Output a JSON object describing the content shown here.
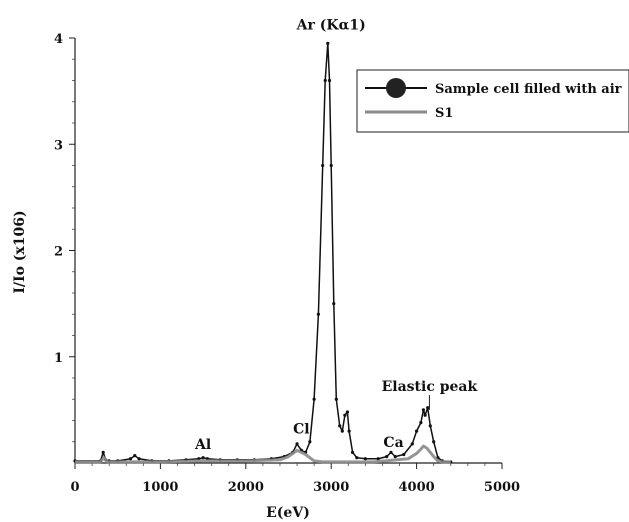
{
  "chart_data": {
    "type": "line",
    "xlabel": "E(eV)",
    "ylabel": "I/Io (x106)",
    "xlim": [
      0,
      5000
    ],
    "ylim": [
      0,
      4
    ],
    "x_ticks": [
      0,
      1000,
      2000,
      3000,
      4000,
      5000
    ],
    "y_ticks": [
      1,
      2,
      3,
      4
    ],
    "grid": false,
    "legend_position": "top-right",
    "annotations": [
      {
        "text": "Ar (Kα1)",
        "x": 3000,
        "y": 4.08
      },
      {
        "text": "Al",
        "x": 1500,
        "y": 0.13
      },
      {
        "text": "Cl",
        "x": 2650,
        "y": 0.28
      },
      {
        "text": "Ca",
        "x": 3730,
        "y": 0.15
      },
      {
        "text": "Elastic peak",
        "x": 4150,
        "y": 0.68
      }
    ],
    "series": [
      {
        "name": "Sample cell filled with air",
        "color": "#111111",
        "marker": "circle",
        "x": [
          0,
          300,
          330,
          360,
          400,
          500,
          650,
          700,
          750,
          900,
          1100,
          1300,
          1450,
          1500,
          1550,
          1700,
          1900,
          2100,
          2300,
          2450,
          2550,
          2600,
          2650,
          2700,
          2750,
          2800,
          2850,
          2900,
          2930,
          2960,
          2980,
          3000,
          3030,
          3060,
          3100,
          3130,
          3160,
          3190,
          3210,
          3250,
          3300,
          3400,
          3550,
          3650,
          3700,
          3750,
          3850,
          3950,
          4000,
          4050,
          4080,
          4100,
          4130,
          4160,
          4200,
          4250,
          4300,
          4400
        ],
        "y": [
          0.02,
          0.02,
          0.1,
          0.03,
          0.02,
          0.02,
          0.04,
          0.07,
          0.04,
          0.02,
          0.02,
          0.03,
          0.04,
          0.05,
          0.04,
          0.03,
          0.03,
          0.03,
          0.04,
          0.06,
          0.1,
          0.18,
          0.12,
          0.1,
          0.2,
          0.6,
          1.4,
          2.8,
          3.6,
          3.95,
          3.6,
          2.8,
          1.5,
          0.6,
          0.35,
          0.3,
          0.45,
          0.48,
          0.3,
          0.1,
          0.05,
          0.04,
          0.04,
          0.06,
          0.1,
          0.06,
          0.08,
          0.18,
          0.3,
          0.38,
          0.5,
          0.45,
          0.52,
          0.35,
          0.2,
          0.05,
          0.02,
          0.01
        ]
      },
      {
        "name": "S1",
        "color": "#8a8a8a",
        "marker": "none",
        "x": [
          0,
          300,
          340,
          380,
          500,
          1000,
          1500,
          2000,
          2400,
          2500,
          2600,
          2700,
          2800,
          2900,
          3000,
          3500,
          3900,
          4000,
          4050,
          4080,
          4120,
          4200,
          4250,
          4300,
          4400
        ],
        "y": [
          0.01,
          0.01,
          0.05,
          0.01,
          0.01,
          0.01,
          0.02,
          0.02,
          0.03,
          0.06,
          0.12,
          0.08,
          0.02,
          0.01,
          0.01,
          0.01,
          0.04,
          0.09,
          0.13,
          0.16,
          0.14,
          0.06,
          0.02,
          0.01,
          0.01
        ]
      }
    ]
  }
}
